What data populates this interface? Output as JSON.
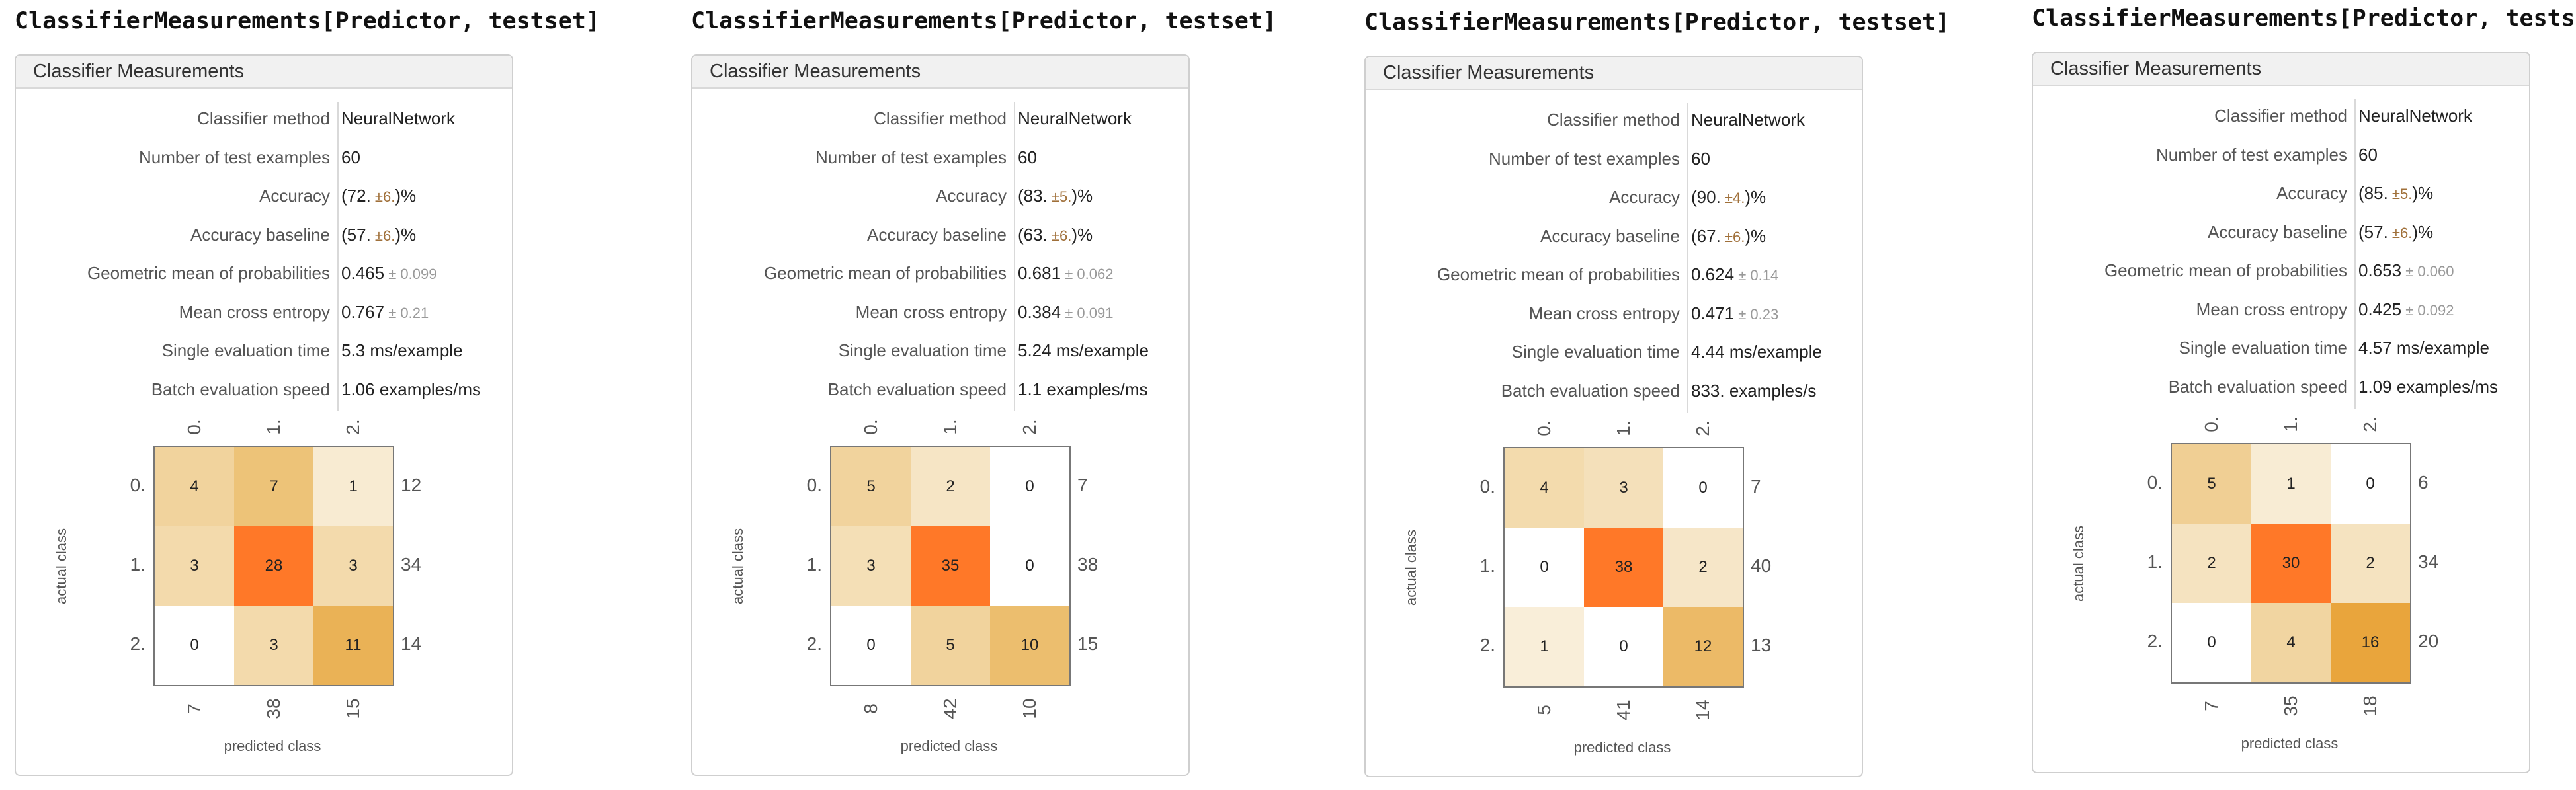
{
  "panels": [
    {
      "code_title": "ClassifierMeasurements[Predictor, testset]",
      "header": "Classifier Measurements",
      "rows": [
        {
          "label": "Classifier method",
          "value": "NeuralNetwork",
          "pm": "",
          "style": "plain"
        },
        {
          "label": "Number of test examples",
          "value": "60",
          "pm": "",
          "style": "plain"
        },
        {
          "label": "Accuracy",
          "value": "(72.",
          "pm": "±6.",
          "tail": ")%",
          "style": "brown"
        },
        {
          "label": "Accuracy baseline",
          "value": "(57.",
          "pm": "±6.",
          "tail": ")%",
          "style": "brown"
        },
        {
          "label": "Geometric mean of probabilities",
          "value": "0.465",
          "pm": "± 0.099",
          "style": "plain"
        },
        {
          "label": "Mean cross entropy",
          "value": "0.767",
          "pm": "± 0.21",
          "style": "plain"
        },
        {
          "label": "Single evaluation time",
          "value": "5.3 ms/example",
          "pm": "",
          "style": "brown"
        },
        {
          "label": "Batch evaluation speed",
          "value": "1.06 examples/ms",
          "pm": "",
          "style": "brown"
        }
      ],
      "matrix": {
        "col_labels": [
          "0.",
          "1.",
          "2."
        ],
        "row_labels": [
          "0.",
          "1.",
          "2."
        ],
        "cells": [
          [
            4,
            7,
            1
          ],
          [
            3,
            28,
            3
          ],
          [
            0,
            3,
            11
          ]
        ],
        "row_sums": [
          "12",
          "34",
          "14"
        ],
        "col_sums": [
          "7",
          "38",
          "15"
        ],
        "xlabel": "predicted class",
        "ylabel": "actual class"
      }
    },
    {
      "code_title": "ClassifierMeasurements[Predictor, testset]",
      "header": "Classifier Measurements",
      "rows": [
        {
          "label": "Classifier method",
          "value": "NeuralNetwork",
          "pm": "",
          "style": "plain"
        },
        {
          "label": "Number of test examples",
          "value": "60",
          "pm": "",
          "style": "plain"
        },
        {
          "label": "Accuracy",
          "value": "(83.",
          "pm": "±5.",
          "tail": ")%",
          "style": "brown"
        },
        {
          "label": "Accuracy baseline",
          "value": "(63.",
          "pm": "±6.",
          "tail": ")%",
          "style": "brown"
        },
        {
          "label": "Geometric mean of probabilities",
          "value": "0.681",
          "pm": "± 0.062",
          "style": "plain"
        },
        {
          "label": "Mean cross entropy",
          "value": "0.384",
          "pm": "± 0.091",
          "style": "plain"
        },
        {
          "label": "Single evaluation time",
          "value": "5.24 ms/example",
          "pm": "",
          "style": "brown"
        },
        {
          "label": "Batch evaluation speed",
          "value": "1.1 examples/ms",
          "pm": "",
          "style": "brown"
        }
      ],
      "matrix": {
        "col_labels": [
          "0.",
          "1.",
          "2."
        ],
        "row_labels": [
          "0.",
          "1.",
          "2."
        ],
        "cells": [
          [
            5,
            2,
            0
          ],
          [
            3,
            35,
            0
          ],
          [
            0,
            5,
            10
          ]
        ],
        "row_sums": [
          "7",
          "38",
          "15"
        ],
        "col_sums": [
          "8",
          "42",
          "10"
        ],
        "xlabel": "predicted class",
        "ylabel": "actual class"
      }
    },
    {
      "code_title": "ClassifierMeasurements[Predictor, testset]",
      "header": "Classifier Measurements",
      "rows": [
        {
          "label": "Classifier method",
          "value": "NeuralNetwork",
          "pm": "",
          "style": "plain"
        },
        {
          "label": "Number of test examples",
          "value": "60",
          "pm": "",
          "style": "plain"
        },
        {
          "label": "Accuracy",
          "value": "(90.",
          "pm": "±4.",
          "tail": ")%",
          "style": "brown"
        },
        {
          "label": "Accuracy baseline",
          "value": "(67.",
          "pm": "±6.",
          "tail": ")%",
          "style": "brown"
        },
        {
          "label": "Geometric mean of probabilities",
          "value": "0.624",
          "pm": "± 0.14",
          "style": "plain"
        },
        {
          "label": "Mean cross entropy",
          "value": "0.471",
          "pm": "± 0.23",
          "style": "plain"
        },
        {
          "label": "Single evaluation time",
          "value": "4.44 ms/example",
          "pm": "",
          "style": "brown"
        },
        {
          "label": "Batch evaluation speed",
          "value": "833. examples/s",
          "pm": "",
          "style": "brown"
        }
      ],
      "matrix": {
        "col_labels": [
          "0.",
          "1.",
          "2."
        ],
        "row_labels": [
          "0.",
          "1.",
          "2."
        ],
        "cells": [
          [
            4,
            3,
            0
          ],
          [
            0,
            38,
            2
          ],
          [
            1,
            0,
            12
          ]
        ],
        "row_sums": [
          "7",
          "40",
          "13"
        ],
        "col_sums": [
          "5",
          "41",
          "14"
        ],
        "xlabel": "predicted class",
        "ylabel": "actual class"
      }
    },
    {
      "code_title": "ClassifierMeasurements[Predictor, testset]",
      "header": "Classifier Measurements",
      "rows": [
        {
          "label": "Classifier method",
          "value": "NeuralNetwork",
          "pm": "",
          "style": "plain"
        },
        {
          "label": "Number of test examples",
          "value": "60",
          "pm": "",
          "style": "plain"
        },
        {
          "label": "Accuracy",
          "value": "(85.",
          "pm": "±5.",
          "tail": ")%",
          "style": "brown"
        },
        {
          "label": "Accuracy baseline",
          "value": "(57.",
          "pm": "±6.",
          "tail": ")%",
          "style": "brown"
        },
        {
          "label": "Geometric mean of probabilities",
          "value": "0.653",
          "pm": "± 0.060",
          "style": "plain"
        },
        {
          "label": "Mean cross entropy",
          "value": "0.425",
          "pm": "± 0.092",
          "style": "plain"
        },
        {
          "label": "Single evaluation time",
          "value": "4.57 ms/example",
          "pm": "",
          "style": "brown"
        },
        {
          "label": "Batch evaluation speed",
          "value": "1.09 examples/ms",
          "pm": "",
          "style": "brown"
        }
      ],
      "matrix": {
        "col_labels": [
          "0.",
          "1.",
          "2."
        ],
        "row_labels": [
          "0.",
          "1.",
          "2."
        ],
        "cells": [
          [
            5,
            1,
            0
          ],
          [
            2,
            30,
            2
          ],
          [
            0,
            4,
            16
          ]
        ],
        "row_sums": [
          "6",
          "34",
          "20"
        ],
        "col_sums": [
          "7",
          "35",
          "18"
        ],
        "xlabel": "predicted class",
        "ylabel": "actual class"
      }
    }
  ],
  "colors": {
    "accent_brown": "#a0703a",
    "heat_low": "#ffffff",
    "heat_high": "#ff7a2a"
  }
}
